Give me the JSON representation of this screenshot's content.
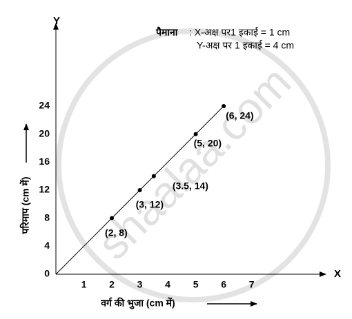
{
  "chart_data": {
    "type": "line",
    "x_axis_name": "X",
    "y_axis_name": "Y",
    "xlabel": "वर्ग की भुजा (cm में)",
    "ylabel": "परिमाप (cm में)",
    "scale_title": "पैमाना",
    "scale_lines": [
      ": X-अक्ष पर1 इकाई = 1 cm",
      "Y-अक्ष पर 1 इकाई = 4 cm"
    ],
    "watermark": "shaalaa.com",
    "xlim": [
      0,
      9.6
    ],
    "ylim": [
      0,
      35.7
    ],
    "xticks": [
      1,
      2,
      3,
      4,
      5,
      6,
      7
    ],
    "yticks": [
      0,
      4,
      8,
      12,
      16,
      20,
      24
    ],
    "series": [
      {
        "color": "#000000",
        "x": [
          2,
          3,
          3.5,
          5,
          6
        ],
        "values": [
          8,
          12,
          14,
          20,
          24
        ],
        "value_labels": [
          "(2, 8)",
          "(3, 12)",
          "(3.5, 14)",
          "(5, 20)",
          "(6, 24)"
        ]
      }
    ]
  }
}
